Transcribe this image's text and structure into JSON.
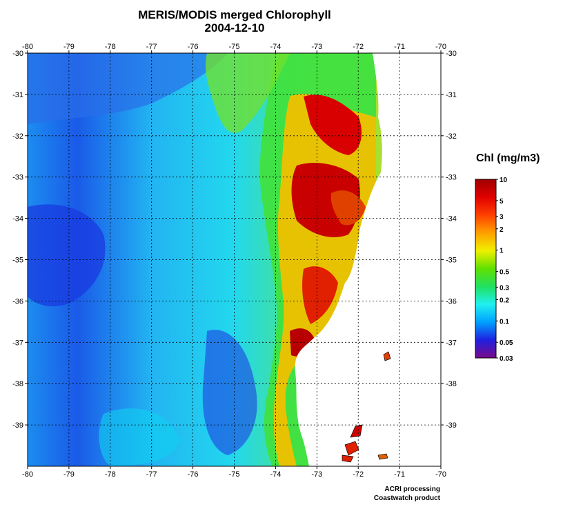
{
  "title": {
    "line1": "MERIS/MODIS merged Chlorophyll",
    "line2": "2004-12-10"
  },
  "map": {
    "lon_range": [
      -80,
      -70
    ],
    "lat_range": [
      -30,
      -40
    ],
    "lon_ticks": [
      "-80",
      "-79",
      "-78",
      "-77",
      "-76",
      "-75",
      "-74",
      "-73",
      "-72",
      "-71",
      "-70"
    ],
    "lat_ticks": [
      "-30",
      "-31",
      "-32",
      "-33",
      "-34",
      "-35",
      "-36",
      "-37",
      "-38",
      "-39"
    ],
    "grid": true
  },
  "legend": {
    "title": "Chl (mg/m3)",
    "scale": "log",
    "range": [
      0.03,
      10
    ],
    "labels": [
      "10",
      "5",
      "3",
      "2",
      "1",
      "0.5",
      "0.3",
      "0.2",
      "0.1",
      "0.05",
      "0.03"
    ],
    "colors": [
      "#7a0a8a",
      "#2020e0",
      "#00a0ff",
      "#20f0f0",
      "#20e060",
      "#60e000",
      "#f0f000",
      "#ffa000",
      "#ff4000",
      "#e00000",
      "#a00000"
    ]
  },
  "credits": {
    "line1": "ACRI processing",
    "line2": "Coastwatch product"
  }
}
